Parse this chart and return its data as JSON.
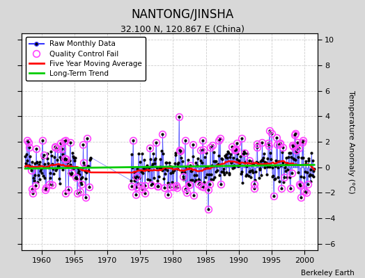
{
  "title": "NANTONG/JINSHA",
  "subtitle": "32.100 N, 120.867 E (China)",
  "ylabel": "Temperature Anomaly (°C)",
  "credit": "Berkeley Earth",
  "xlim": [
    1957.0,
    2002.0
  ],
  "ylim": [
    -6.5,
    10.5
  ],
  "yticks": [
    -6,
    -4,
    -2,
    0,
    2,
    4,
    6,
    8,
    10
  ],
  "xticks": [
    1960,
    1965,
    1970,
    1975,
    1980,
    1985,
    1990,
    1995,
    2000
  ],
  "plot_bg": "#ffffff",
  "fig_bg": "#d8d8d8",
  "grid_color": "#cccccc",
  "raw_line_color": "#3333ff",
  "raw_dot_color": "#000000",
  "qc_color": "#ff44ff",
  "moving_avg_color": "#ff0000",
  "trend_color": "#00cc00",
  "seed": 42,
  "start_year": 1957.5,
  "end_year": 2001.5,
  "gap_start": 1967.5,
  "gap_end": 1973.5,
  "moving_avg_window": 60
}
